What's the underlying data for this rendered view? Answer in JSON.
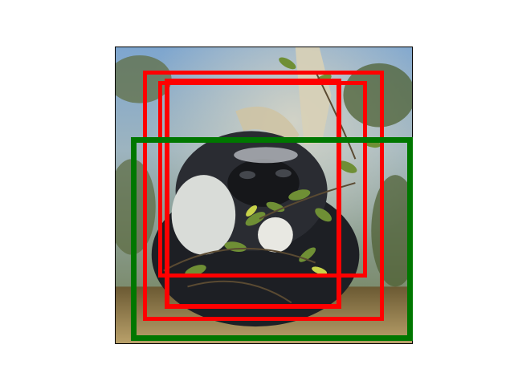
{
  "image": {
    "subject": "",
    "boxes": [
      {
        "name": "red-box-1",
        "color": "#ff0000"
      },
      {
        "name": "red-box-2",
        "color": "#ff0000"
      },
      {
        "name": "red-box-3",
        "color": "#ff0000"
      },
      {
        "name": "green-box",
        "color": "#007700"
      }
    ]
  }
}
